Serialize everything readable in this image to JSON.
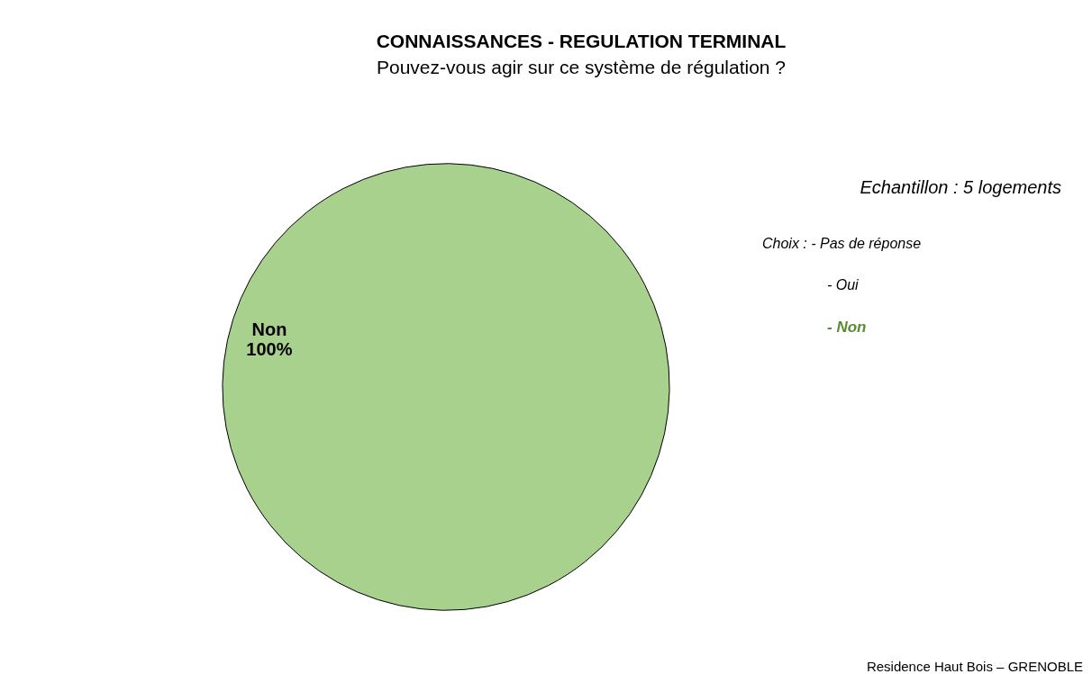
{
  "chart_data": {
    "type": "pie",
    "title": "CONNAISSANCES - REGULATION TERMINAL",
    "subtitle": "Pouvez-vous agir sur ce système de régulation ?",
    "categories": [
      "Non"
    ],
    "values": [
      100
    ],
    "colors": [
      "#a9d18e"
    ],
    "value_labels": [
      "100%"
    ],
    "annotations": [
      "Echantillon : 5 logements",
      "Choix  : - Pas de réponse",
      "- Oui",
      "- Non",
      "Residence Haut Bois – GRENOBLE"
    ]
  }
}
